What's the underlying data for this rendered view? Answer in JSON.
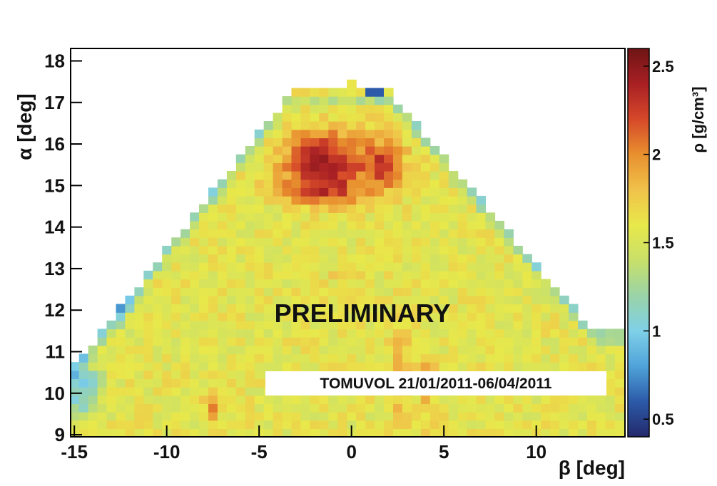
{
  "chart_data": {
    "type": "heatmap",
    "title": "",
    "xlabel": "β [deg]",
    "ylabel": "α [deg]",
    "xlim": [
      -15.2,
      14.8
    ],
    "ylim": [
      8.95,
      18.3
    ],
    "x_ticks": [
      -15,
      -10,
      -5,
      0,
      5,
      10
    ],
    "y_ticks": [
      9,
      10,
      11,
      12,
      13,
      14,
      15,
      16,
      17,
      18
    ],
    "grid": false,
    "colorbar": {
      "label": "ρ [g/cm³]",
      "range": [
        0.4,
        2.6
      ],
      "ticks": [
        0.5,
        1,
        1.5,
        2,
        2.5
      ],
      "colormap": [
        "#23296b",
        "#2c5aa8",
        "#4fa3d9",
        "#7fd0e8",
        "#9ad3a7",
        "#c8e06a",
        "#e8e84a",
        "#f0c24a",
        "#e8902e",
        "#d6482a",
        "#a82024",
        "#6e1414"
      ]
    },
    "annotations": [
      "PRELIMINARY",
      "TOMUVOL 21/01/2011-06/04/2011"
    ],
    "cell_size": [
      0.5,
      0.2
    ],
    "density_regions": [
      {
        "description": "dense core",
        "beta_center": -1.0,
        "alpha_center": 15.6,
        "value": 2.45
      },
      {
        "description": "upper core",
        "beta_center": -2.5,
        "alpha_center": 16.1,
        "value": 2.3
      },
      {
        "description": "right lobe",
        "beta_center": 1.8,
        "alpha_center": 15.5,
        "value": 2.2
      },
      {
        "description": "lower band",
        "beta_center": -1.5,
        "alpha_center": 14.9,
        "value": 2.05
      },
      {
        "description": "left edge",
        "beta_center": -14.5,
        "alpha_center": 10.0,
        "value": 1.0
      },
      {
        "description": "summit spot",
        "beta_center": 1.3,
        "alpha_center": 17.2,
        "value": 0.6
      },
      {
        "description": "streak",
        "beta_center": 2.7,
        "alpha_center": 10.8,
        "value": 2.0
      },
      {
        "description": "streak",
        "beta_center": 4.1,
        "alpha_center": 10.2,
        "value": 1.95
      },
      {
        "description": "spot",
        "beta_center": -7.5,
        "alpha_center": 9.7,
        "value": 2.05
      }
    ]
  }
}
